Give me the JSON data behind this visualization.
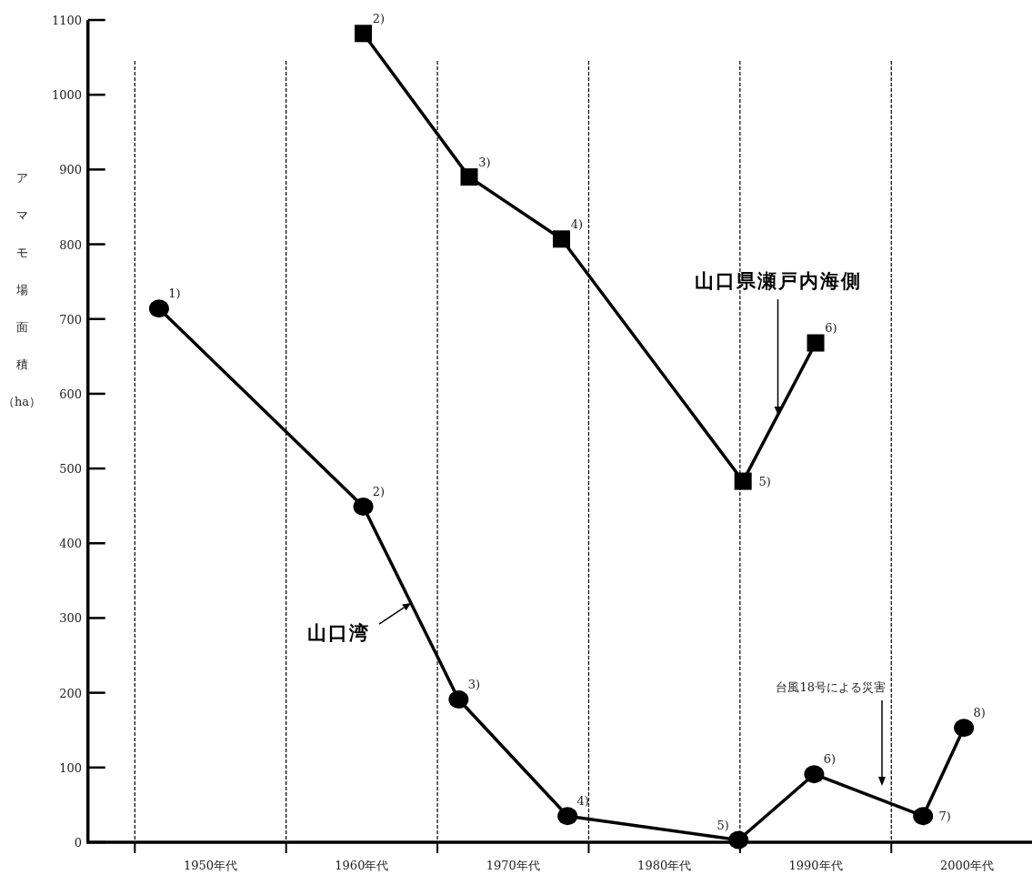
{
  "chart_data": {
    "type": "line",
    "ylabel": "アマモ場面積（ha）",
    "ylim": [
      0,
      1100
    ],
    "xlim": [
      1941.9,
      2004.3
    ],
    "xticks": [
      {
        "value": 1945,
        "label": null
      },
      {
        "value": 1950,
        "label": "1950年代"
      },
      {
        "value": 1955,
        "label": null
      },
      {
        "value": 1960,
        "label": "1960年代"
      },
      {
        "value": 1965,
        "label": null
      },
      {
        "value": 1970,
        "label": "1970年代"
      },
      {
        "value": 1975,
        "label": null
      },
      {
        "value": 1980,
        "label": "1980年代"
      },
      {
        "value": 1985,
        "label": null
      },
      {
        "value": 1990,
        "label": "1990年代"
      },
      {
        "value": 1995,
        "label": null
      },
      {
        "value": 2000,
        "label": "2000年代"
      }
    ],
    "yticks": [
      0,
      100,
      200,
      300,
      400,
      500,
      600,
      700,
      800,
      900,
      1000,
      1100
    ],
    "series": [
      {
        "name": "山口湾",
        "color": "#000000",
        "marker": "circle",
        "x": [
          1946.6,
          1960.1,
          1966.4,
          1973.6,
          1984.9,
          1989.9,
          1997.1,
          1999.8
        ],
        "values": [
          714,
          449,
          191,
          35,
          3,
          91,
          35,
          153
        ]
      },
      {
        "name": "山口県瀬戸内海側",
        "color": "#000000",
        "marker": "square",
        "x": [
          1960.1,
          1967.1,
          1973.2,
          1985.2,
          1990.0
        ],
        "values": [
          1082,
          890,
          807,
          483,
          668
        ]
      }
    ],
    "ref_lines": [
      {
        "axis": "x",
        "value": 1945,
        "line_style": "dashed",
        "color": "#000000"
      },
      {
        "axis": "x",
        "value": 1955,
        "line_style": "dashed",
        "color": "#000000"
      },
      {
        "axis": "x",
        "value": 1965,
        "line_style": "dashed",
        "color": "#000000"
      },
      {
        "axis": "x",
        "value": 1975,
        "line_style": "dashed",
        "color": "#000000"
      },
      {
        "axis": "x",
        "value": 1985,
        "line_style": "dashed",
        "color": "#000000"
      },
      {
        "axis": "x",
        "value": 1995,
        "line_style": "dashed",
        "color": "#000000"
      }
    ],
    "annotations": [
      {
        "text": "1)",
        "x": 1946.6,
        "y": 714
      },
      {
        "text": "2)",
        "x": 1960.1,
        "y": 449
      },
      {
        "text": "3)",
        "x": 1966.4,
        "y": 191
      },
      {
        "text": "4)",
        "x": 1973.6,
        "y": 35
      },
      {
        "text": "5)",
        "x": 1984.9,
        "y": 3
      },
      {
        "text": "6)",
        "x": 1989.9,
        "y": 91
      },
      {
        "text": "7)",
        "x": 1997.1,
        "y": 35
      },
      {
        "text": "8)",
        "x": 1999.8,
        "y": 153
      },
      {
        "text": "2)",
        "x": 1960.1,
        "y": 1082
      },
      {
        "text": "3)",
        "x": 1967.1,
        "y": 890
      },
      {
        "text": "4)",
        "x": 1973.2,
        "y": 807
      },
      {
        "text": "5)",
        "x": 1985.2,
        "y": 483
      },
      {
        "text": "6)",
        "x": 1990.0,
        "y": 668
      },
      "台風18号による災害"
    ]
  }
}
